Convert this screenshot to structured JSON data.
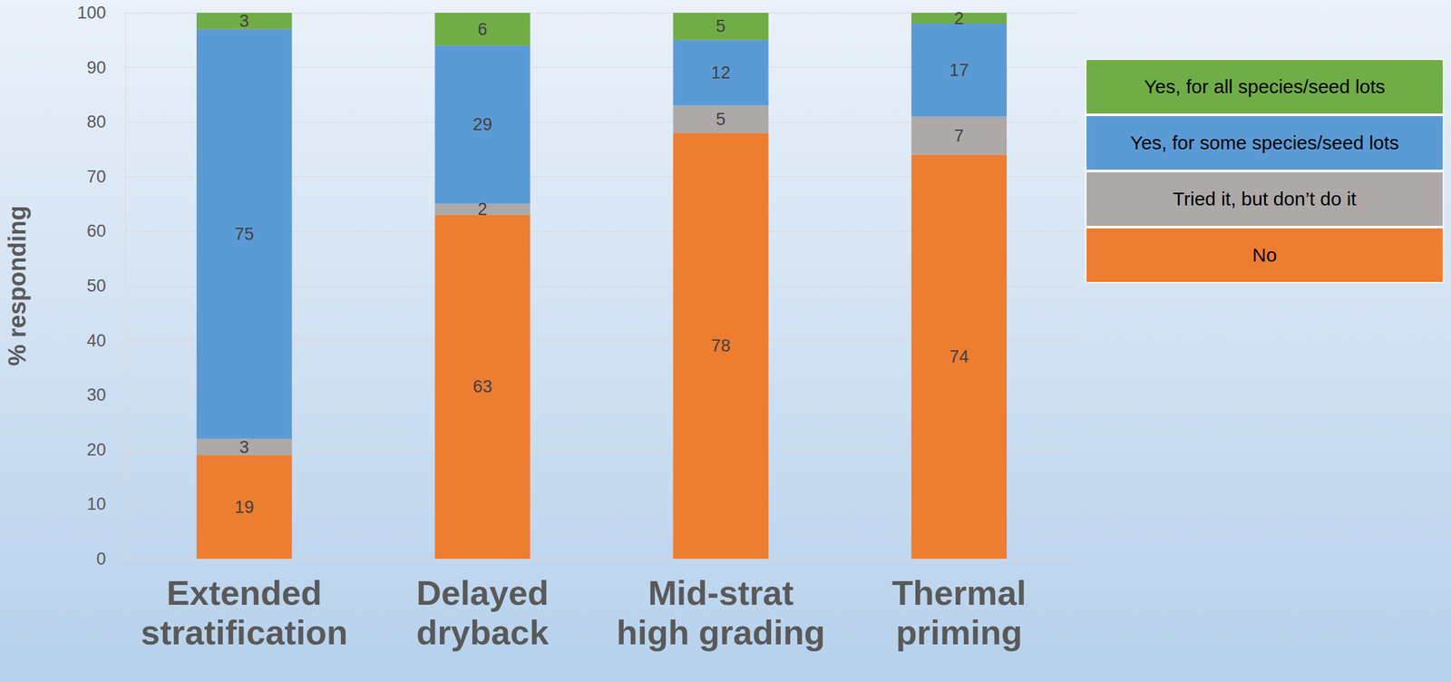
{
  "chart_data": {
    "type": "bar",
    "stacked": true,
    "data_labels": true,
    "grid": true,
    "legend": "right",
    "y_label": "% responding",
    "categories": [
      "Extended stratification",
      "Delayed dryback",
      "Mid-strat high grading",
      "Thermal priming"
    ],
    "ylim": [
      0,
      100
    ],
    "yticks": [
      0,
      10,
      20,
      30,
      40,
      50,
      60,
      70,
      80,
      90,
      100
    ],
    "series": [
      {
        "name": "No",
        "color": "#ED7D31",
        "values": [
          19,
          63,
          78,
          74
        ]
      },
      {
        "name": "Tried it, but don’t do it",
        "color": "#ADA9A8",
        "values": [
          3,
          2,
          5,
          7
        ]
      },
      {
        "name": "Yes, for some species/seed lots",
        "color": "#5B9BD5",
        "values": [
          75,
          29,
          12,
          17
        ]
      },
      {
        "name": "Yes, for all species/seed lots",
        "color": "#70AD47",
        "values": [
          3,
          6,
          5,
          2
        ]
      }
    ]
  }
}
